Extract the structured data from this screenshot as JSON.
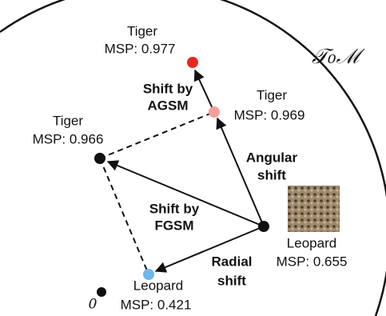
{
  "manifold_label": "𝒯₀ℳ",
  "origin_label": "0",
  "nodes": [
    {
      "class": "Tiger",
      "msp": "MSP: 0.977"
    },
    {
      "class": "Tiger",
      "msp": "MSP: 0.969"
    },
    {
      "class": "Tiger",
      "msp": "MSP: 0.966"
    },
    {
      "class": "Leopard",
      "msp": "MSP: 0.655"
    },
    {
      "class": "Leopard",
      "msp": "MSP: 0.421"
    }
  ],
  "edge_labels": {
    "agsm": [
      "Shift by",
      "AGSM"
    ],
    "angular": [
      "Angular",
      "shift"
    ],
    "fgsm": [
      "Shift by",
      "FGSM"
    ],
    "radial": [
      "Radial",
      "shift"
    ]
  }
}
